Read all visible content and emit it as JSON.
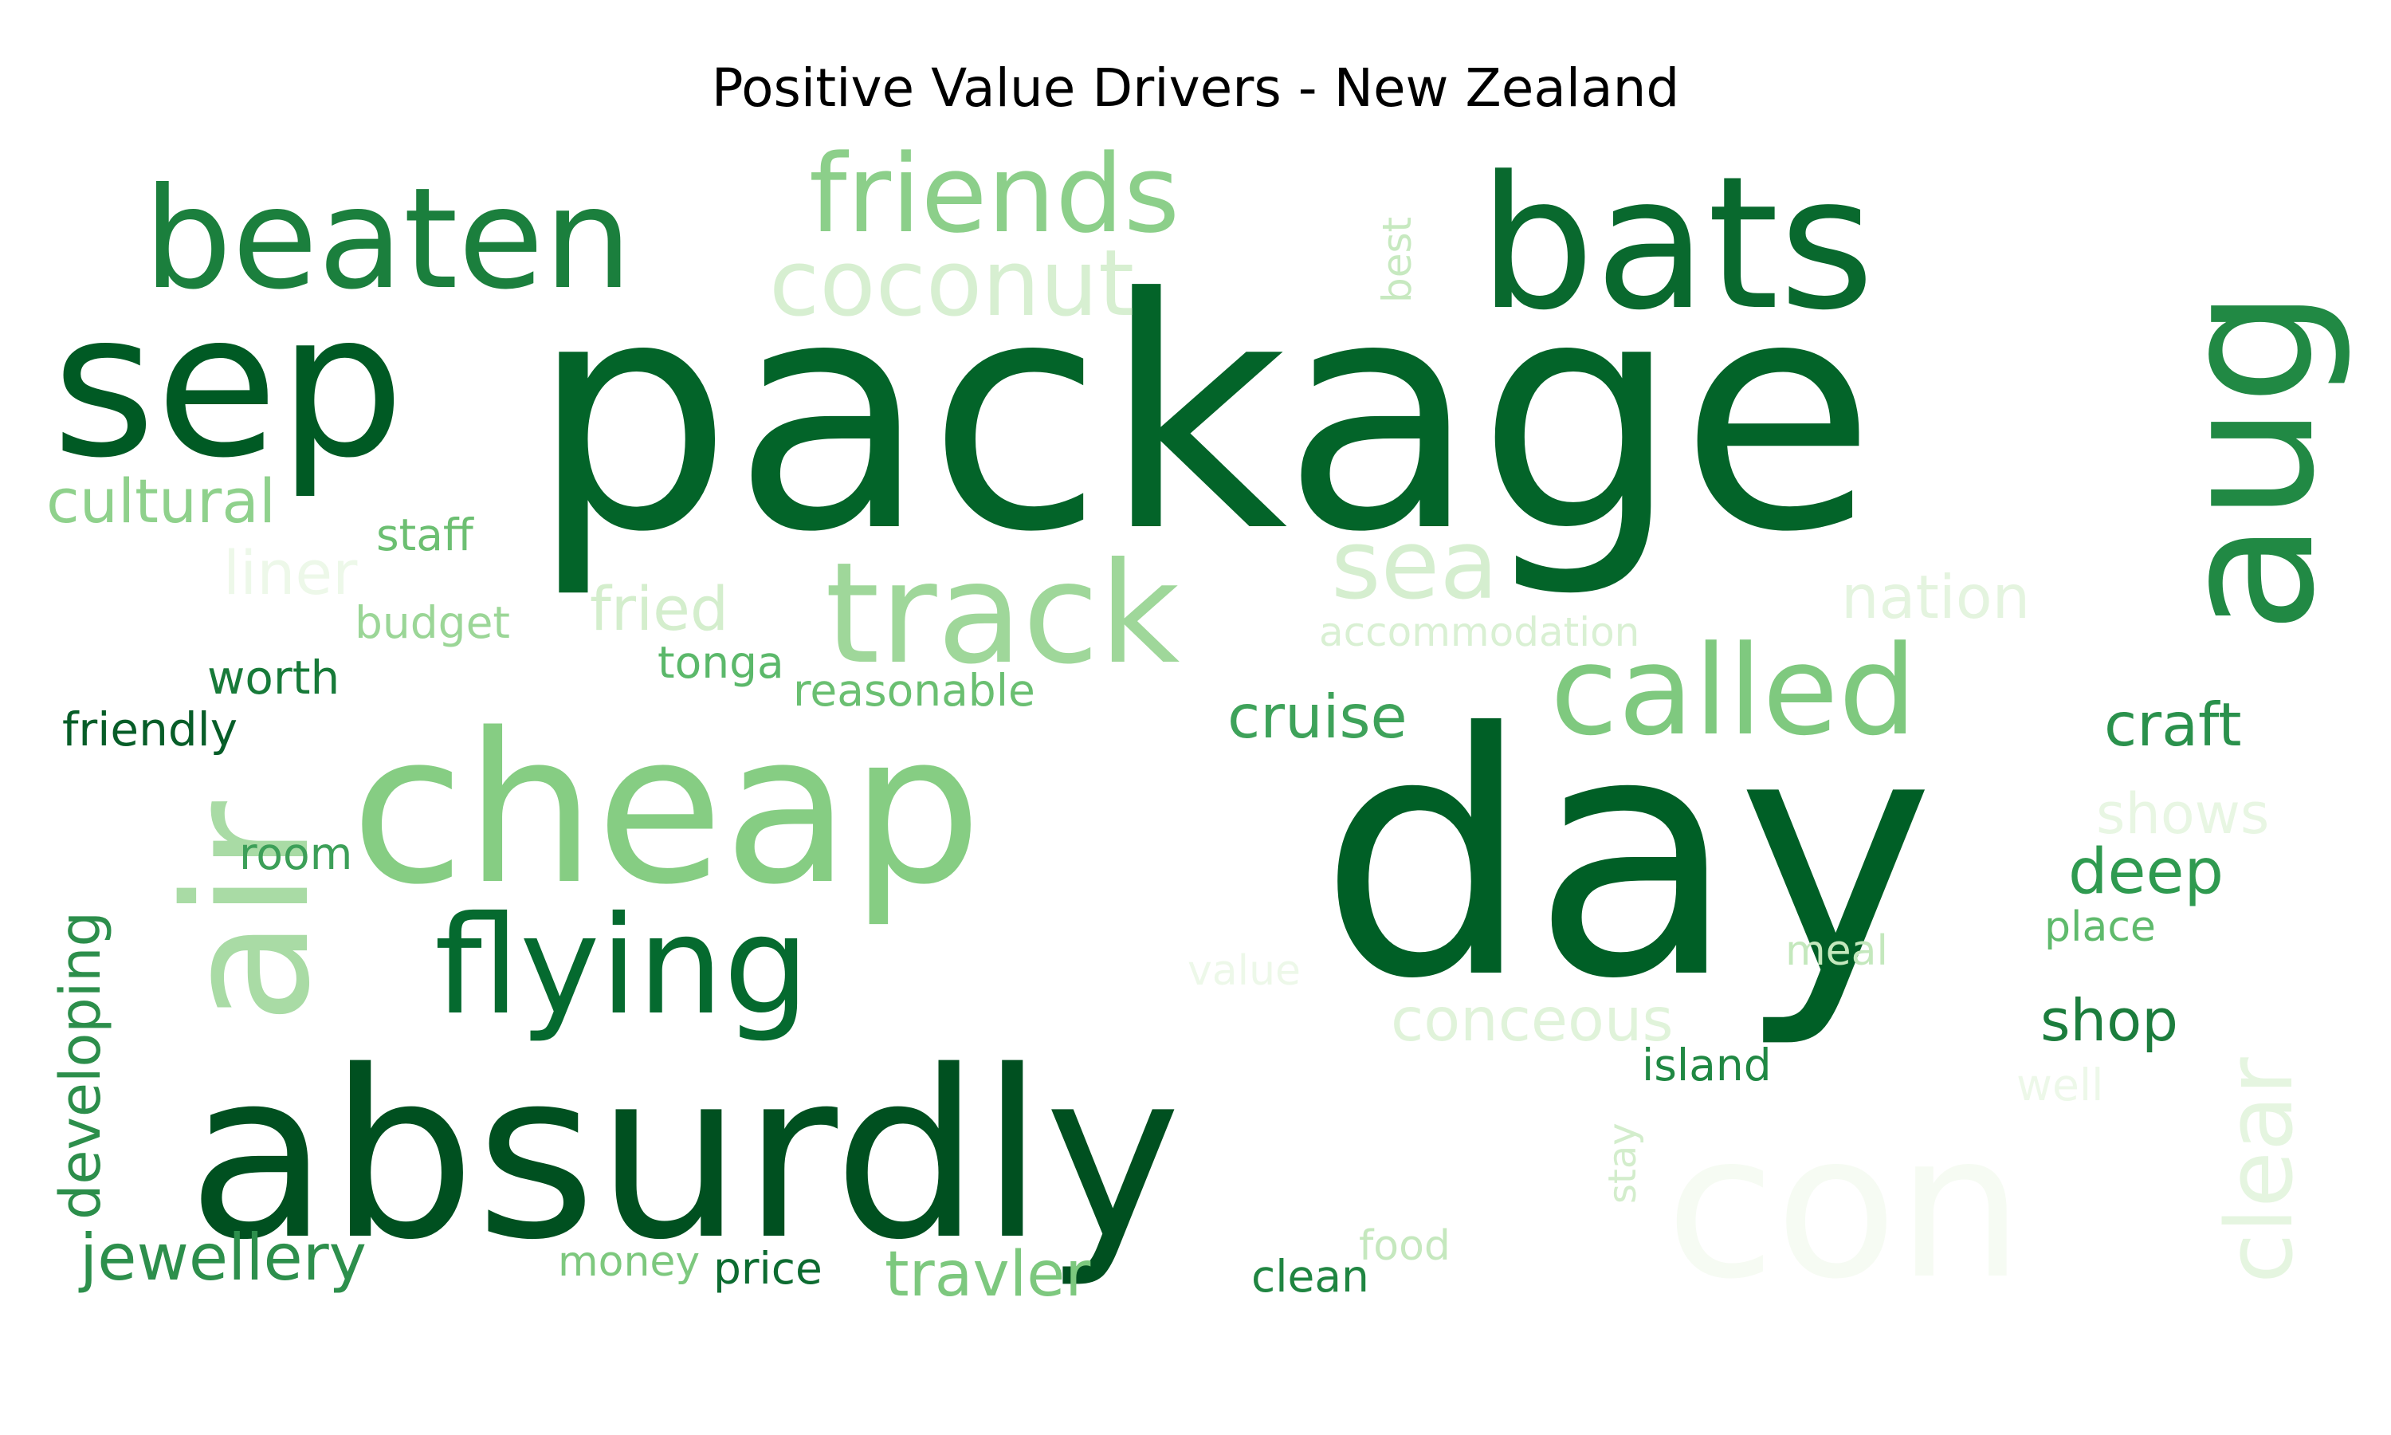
{
  "figure": {
    "title": "Positive Value Drivers - New Zealand",
    "colormap": "Greens",
    "background": "#ffffff"
  },
  "words": [
    {
      "text": "package",
      "color": "#036429"
    },
    {
      "text": "day",
      "color": "#005f26"
    },
    {
      "text": "absurdly",
      "color": "#005020"
    },
    {
      "text": "sep",
      "color": "#005a24"
    },
    {
      "text": "cheap",
      "color": "#86cd83"
    },
    {
      "text": "bats",
      "color": "#09692e"
    },
    {
      "text": "aug",
      "color": "#218944"
    },
    {
      "text": "air",
      "color": "#a9dba5"
    },
    {
      "text": "con",
      "color": "#f6fbf3"
    },
    {
      "text": "beaten",
      "color": "#1b7f3d"
    },
    {
      "text": "flying",
      "color": "#056a2f"
    },
    {
      "text": "track",
      "color": "#9fd79a"
    },
    {
      "text": "called",
      "color": "#7fc97f"
    },
    {
      "text": "friends",
      "color": "#8ccf8a"
    },
    {
      "text": "coconut",
      "color": "#d7efd1"
    },
    {
      "text": "sea",
      "color": "#d5eecf"
    },
    {
      "text": "clear",
      "color": "#e5f5e0"
    },
    {
      "text": "cultural",
      "color": "#8fd18c"
    },
    {
      "text": "developing",
      "color": "#2c8e4b"
    },
    {
      "text": "jewellery",
      "color": "#2d8f4c"
    },
    {
      "text": "travler",
      "color": "#7dc87e"
    },
    {
      "text": "conceous",
      "color": "#e0f3da"
    },
    {
      "text": "nation",
      "color": "#e4f4df"
    },
    {
      "text": "cruise",
      "color": "#3ea25a"
    },
    {
      "text": "craft",
      "color": "#2a914c"
    },
    {
      "text": "shows",
      "color": "#e8f6e3"
    },
    {
      "text": "deep",
      "color": "#2f9a50"
    },
    {
      "text": "shop",
      "color": "#1c7d3d"
    },
    {
      "text": "fried",
      "color": "#d4eecd"
    },
    {
      "text": "liner",
      "color": "#edf8e9"
    },
    {
      "text": "accommodation",
      "color": "#d9f0d3"
    },
    {
      "text": "reasonable",
      "color": "#6abf71"
    },
    {
      "text": "tonga",
      "color": "#5bb86a"
    },
    {
      "text": "budget",
      "color": "#9bd697"
    },
    {
      "text": "staff",
      "color": "#6cbf72"
    },
    {
      "text": "worth",
      "color": "#177a39"
    },
    {
      "text": "friendly",
      "color": "#075d28"
    },
    {
      "text": "room",
      "color": "#3c9f58"
    },
    {
      "text": "best",
      "color": "#c7e9c0"
    },
    {
      "text": "value",
      "color": "#edf8e9"
    },
    {
      "text": "meal",
      "color": "#c4e8bd"
    },
    {
      "text": "place",
      "color": "#5fba6c"
    },
    {
      "text": "island",
      "color": "#208843"
    },
    {
      "text": "well",
      "color": "#edf8e9"
    },
    {
      "text": "stay",
      "color": "#d3edcc"
    },
    {
      "text": "food",
      "color": "#c5e8be"
    },
    {
      "text": "clean",
      "color": "#1f8541"
    },
    {
      "text": "price",
      "color": "#0c6b30"
    },
    {
      "text": "money",
      "color": "#7dc87e"
    }
  ]
}
